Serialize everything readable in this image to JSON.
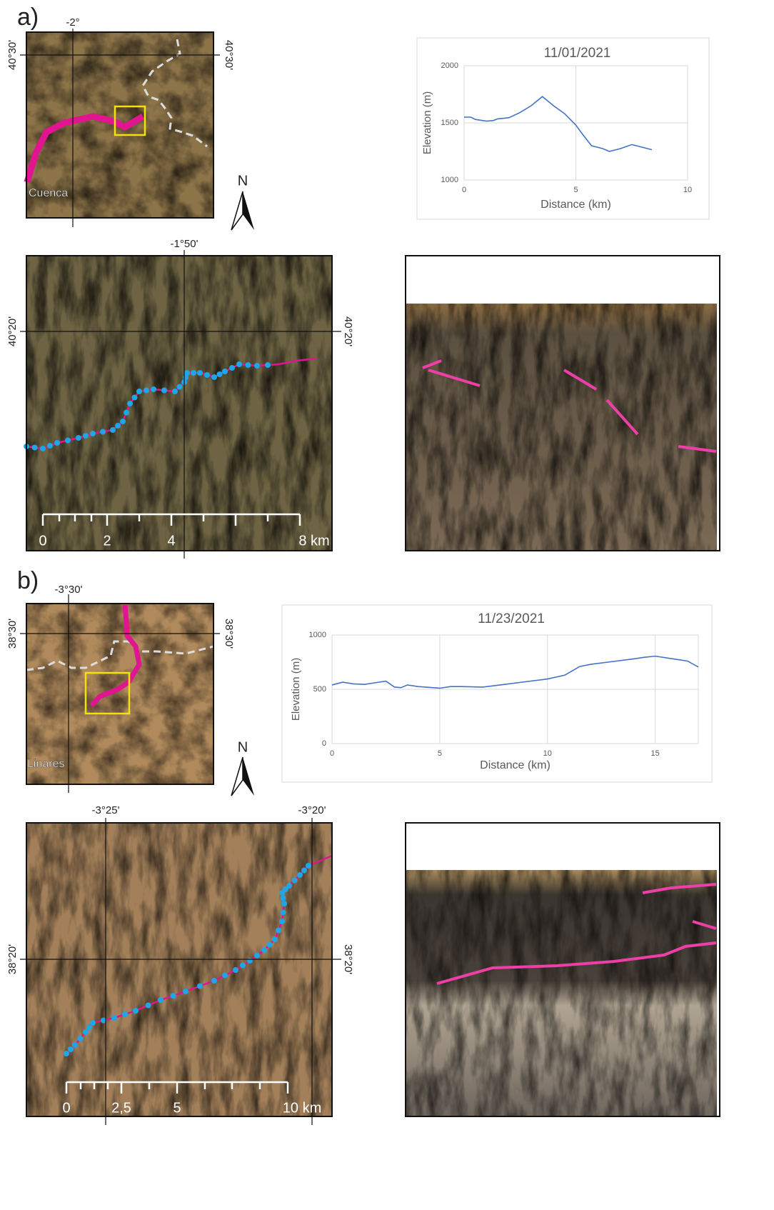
{
  "chart_data": [
    {
      "type": "line",
      "title": "11/01/2021",
      "x_label": "Distance (km)",
      "y_label": "Elevation (m)",
      "x": [
        0,
        0.3,
        0.5,
        1,
        1.3,
        1.5,
        2,
        2.5,
        3,
        3.5,
        4,
        4.5,
        5,
        5.3,
        5.7,
        6.2,
        6.5,
        7,
        7.5,
        8,
        8.4
      ],
      "values": [
        1550,
        1550,
        1530,
        1515,
        1520,
        1535,
        1545,
        1590,
        1650,
        1730,
        1650,
        1580,
        1480,
        1400,
        1300,
        1275,
        1250,
        1275,
        1310,
        1285,
        1265
      ],
      "color": "#4472c4",
      "xlim": [
        0,
        10
      ],
      "xticks": [
        0,
        5,
        10
      ],
      "ylim": [
        1000,
        2000
      ],
      "yticks": [
        1000,
        1500,
        2000
      ],
      "grid": true
    },
    {
      "type": "line",
      "title": "11/23/2021",
      "x_label": "Distance (km)",
      "y_label": "Elevation (m)",
      "x": [
        0,
        0.5,
        1,
        1.5,
        2,
        2.5,
        2.9,
        3.2,
        3.5,
        4,
        5,
        5.5,
        6,
        7,
        8,
        9,
        10,
        10.8,
        11.5,
        12,
        13,
        14,
        14.5,
        15,
        16,
        16.5,
        17
      ],
      "values": [
        540,
        565,
        550,
        545,
        560,
        575,
        520,
        515,
        540,
        525,
        510,
        525,
        525,
        520,
        545,
        570,
        595,
        630,
        710,
        730,
        755,
        780,
        795,
        805,
        775,
        760,
        705
      ],
      "color": "#4472c4",
      "xlim": [
        0,
        17
      ],
      "xticks": [
        0,
        5,
        10,
        15
      ],
      "ylim": [
        0,
        1000
      ],
      "yticks": [
        0,
        500,
        1000
      ],
      "grid": true
    }
  ],
  "figure": {
    "panel_a": {
      "label": "a)",
      "overview": {
        "lon": "-2°",
        "lat_left": "40°30'",
        "lat_right": "40°30'",
        "place": "Cuenca",
        "north": "N"
      },
      "detail": {
        "lon": "-1°50'",
        "lat_left": "40°20'",
        "lat_right": "40°20'",
        "scale": [
          "0",
          "2",
          "4",
          "8 km"
        ]
      }
    },
    "panel_b": {
      "label": "b)",
      "overview": {
        "lon": "-3°30'",
        "lat_left": "38°30'",
        "lat_right": "38°30'",
        "place": "Linares",
        "north": "N"
      },
      "detail": {
        "lon": [
          "-3°25'",
          "-3°20'"
        ],
        "lat_left": "38°20'",
        "lat_right": "38°20'",
        "scale": [
          "0",
          "2,5",
          "5",
          "10 km"
        ]
      }
    }
  }
}
